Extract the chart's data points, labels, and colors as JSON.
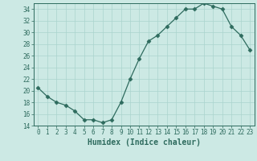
{
  "xlabel": "Humidex (Indice chaleur)",
  "x": [
    0,
    1,
    2,
    3,
    4,
    5,
    6,
    7,
    8,
    9,
    10,
    11,
    12,
    13,
    14,
    15,
    16,
    17,
    18,
    19,
    20,
    21,
    22,
    23
  ],
  "y": [
    20.5,
    19.0,
    18.0,
    17.5,
    16.5,
    15.0,
    15.0,
    14.5,
    15.0,
    18.0,
    22.0,
    25.5,
    28.5,
    29.5,
    31.0,
    32.5,
    34.0,
    34.0,
    35.0,
    34.5,
    34.0,
    31.0,
    29.5,
    27.0
  ],
  "ylim": [
    14,
    35
  ],
  "yticks": [
    14,
    16,
    18,
    20,
    22,
    24,
    26,
    28,
    30,
    32,
    34
  ],
  "line_color": "#2e6b5e",
  "marker": "D",
  "marker_size": 2.5,
  "bg_color": "#cce9e4",
  "grid_color": "#aad4ce",
  "label_color": "#2e6b5e",
  "tick_color": "#2e6b5e",
  "font_family": "monospace",
  "tick_fontsize": 5.5,
  "xlabel_fontsize": 7
}
